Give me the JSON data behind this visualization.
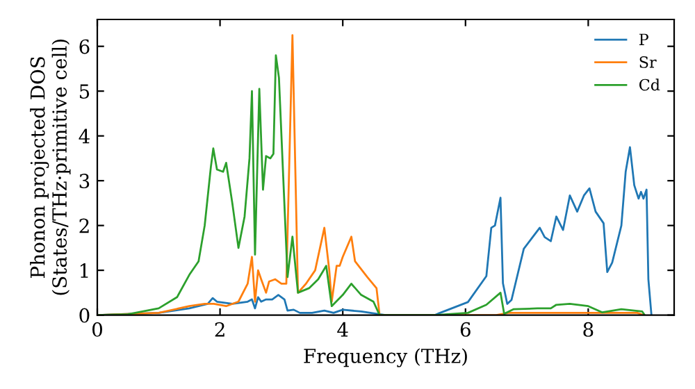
{
  "chart_data": {
    "type": "line",
    "xlabel": "Frequency (THz)",
    "ylabel": "Phonon projected DOS\n(States/THz·primitive cell)",
    "xlim": [
      0,
      9.4
    ],
    "ylim": [
      0,
      6.6
    ],
    "xticks": [
      0,
      2,
      4,
      6,
      8
    ],
    "yticks": [
      0,
      1,
      2,
      3,
      4,
      5,
      6
    ],
    "grid": false,
    "legend": "top right",
    "marker": "none",
    "line_style": "solid",
    "series": [
      {
        "name": "P",
        "color": "#1f77b4",
        "x": [
          0,
          1,
          1.5,
          1.8,
          1.88,
          1.95,
          2.2,
          2.45,
          2.52,
          2.57,
          2.62,
          2.67,
          2.75,
          2.85,
          2.95,
          3.05,
          3.1,
          3.2,
          3.3,
          3.5,
          3.7,
          3.85,
          4.0,
          4.3,
          4.6,
          4.7,
          5.5,
          5.55,
          6.04,
          6.34,
          6.42,
          6.48,
          6.57,
          6.61,
          6.68,
          6.75,
          6.95,
          7.21,
          7.29,
          7.39,
          7.48,
          7.59,
          7.7,
          7.82,
          7.93,
          8.02,
          8.12,
          8.25,
          8.31,
          8.39,
          8.54,
          8.61,
          8.68,
          8.75,
          8.82,
          8.86,
          8.9,
          8.95,
          8.98,
          9.03
        ],
        "values": [
          0,
          0.05,
          0.15,
          0.25,
          0.38,
          0.3,
          0.25,
          0.3,
          0.35,
          0.15,
          0.4,
          0.3,
          0.35,
          0.35,
          0.45,
          0.35,
          0.1,
          0.12,
          0.05,
          0.05,
          0.1,
          0.05,
          0.12,
          0.08,
          0.02,
          0,
          0,
          0.03,
          0.29,
          0.87,
          1.95,
          2.0,
          2.62,
          0.71,
          0.25,
          0.34,
          1.48,
          1.95,
          1.74,
          1.65,
          2.2,
          1.9,
          2.67,
          2.31,
          2.67,
          2.83,
          2.31,
          2.05,
          0.96,
          1.17,
          2.0,
          3.2,
          3.75,
          2.9,
          2.6,
          2.75,
          2.6,
          2.8,
          0.8,
          0
        ]
      },
      {
        "name": "Sr",
        "color": "#ff7f0e",
        "x": [
          0,
          1,
          1.5,
          1.75,
          1.9,
          2.1,
          2.3,
          2.45,
          2.52,
          2.57,
          2.62,
          2.67,
          2.75,
          2.8,
          2.9,
          3.0,
          3.08,
          3.18,
          3.27,
          3.4,
          3.55,
          3.7,
          3.78,
          3.82,
          3.9,
          3.95,
          4.0,
          4.14,
          4.2,
          4.4,
          4.55,
          4.6,
          6.5,
          6.7,
          8.0,
          8.8,
          8.9
        ],
        "values": [
          0,
          0.05,
          0.2,
          0.25,
          0.25,
          0.2,
          0.3,
          0.7,
          1.3,
          0.3,
          1.0,
          0.8,
          0.5,
          0.75,
          0.8,
          0.7,
          0.7,
          6.25,
          0.5,
          0.7,
          1.0,
          1.95,
          1.0,
          0.3,
          1.1,
          1.1,
          1.3,
          1.75,
          1.2,
          0.85,
          0.6,
          0,
          0,
          0.05,
          0.05,
          0.05,
          0
        ]
      },
      {
        "name": "Cd",
        "color": "#2ca02c",
        "x": [
          0,
          0.5,
          1.0,
          1.3,
          1.5,
          1.65,
          1.75,
          1.85,
          1.89,
          1.95,
          2.05,
          2.1,
          2.2,
          2.3,
          2.4,
          2.48,
          2.52,
          2.57,
          2.64,
          2.7,
          2.75,
          2.82,
          2.87,
          2.91,
          2.96,
          3.1,
          3.18,
          3.27,
          3.45,
          3.6,
          3.73,
          3.82,
          4.0,
          4.14,
          4.3,
          4.5,
          4.6,
          5.5,
          6.04,
          6.34,
          6.57,
          6.63,
          6.78,
          7.17,
          7.39,
          7.48,
          7.7,
          8.0,
          8.23,
          8.54,
          8.88,
          8.92
        ],
        "values": [
          0,
          0.02,
          0.15,
          0.4,
          0.9,
          1.2,
          2.0,
          3.3,
          3.72,
          3.25,
          3.2,
          3.4,
          2.5,
          1.5,
          2.2,
          3.5,
          5.0,
          1.35,
          5.05,
          2.8,
          3.55,
          3.5,
          3.6,
          5.8,
          5.3,
          0.85,
          1.75,
          0.5,
          0.6,
          0.8,
          1.1,
          0.2,
          0.45,
          0.7,
          0.45,
          0.3,
          0,
          0,
          0.05,
          0.23,
          0.5,
          0.03,
          0.13,
          0.15,
          0.15,
          0.23,
          0.25,
          0.2,
          0.06,
          0.13,
          0.08,
          0
        ]
      }
    ]
  }
}
